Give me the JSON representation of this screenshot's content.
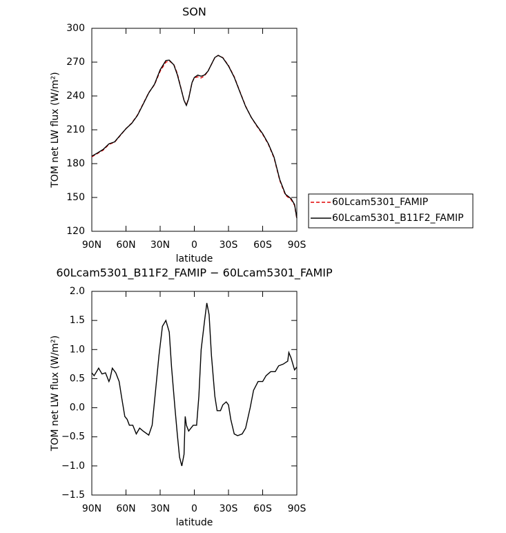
{
  "chart_data": [
    {
      "type": "line",
      "title": "SON",
      "xlabel": "latitude",
      "ylabel": "TOM net LW flux (W/m²)",
      "x": [
        90,
        85,
        80,
        75,
        70,
        65,
        60,
        55,
        50,
        45,
        40,
        35,
        30,
        25,
        22,
        18,
        15,
        12,
        9,
        7,
        5,
        2,
        0,
        -3,
        -6,
        -9,
        -12,
        -15,
        -18,
        -21,
        -25,
        -30,
        -35,
        -40,
        -45,
        -50,
        -55,
        -60,
        -65,
        -70,
        -75,
        -80,
        -85,
        -88,
        -90
      ],
      "series": [
        {
          "name": "60Lcam5301_FAMIP",
          "color": "#e00000",
          "style": "dashed",
          "values": [
            186,
            189,
            192,
            197,
            199,
            205,
            211,
            216,
            223,
            233,
            243,
            250,
            262,
            270,
            271,
            268,
            260,
            248,
            236,
            232,
            238,
            252,
            256,
            257,
            256,
            258,
            262,
            268,
            274,
            276,
            274,
            267,
            257,
            244,
            231,
            221,
            213,
            206,
            197,
            185,
            165,
            152,
            148,
            143,
            131
          ]
        },
        {
          "name": "60Lcam5301_B11F2_FAMIP",
          "color": "#000000",
          "style": "solid",
          "values": [
            186.6,
            189.5,
            192.6,
            197.5,
            199.3,
            205.3,
            211,
            215.7,
            222.6,
            232.6,
            242.7,
            250.4,
            263.2,
            271.5,
            271.8,
            267.6,
            259,
            247.7,
            236.1,
            231.6,
            237.7,
            251.9,
            256.4,
            258.5,
            257.5,
            258.7,
            262,
            268.1,
            274.1,
            276,
            273.8,
            266.6,
            256.6,
            243.6,
            230.7,
            221,
            213.5,
            206.6,
            197.6,
            185.7,
            165.8,
            152.9,
            148.9,
            143.7,
            131.7
          ]
        }
      ],
      "xlim": [
        90,
        -90
      ],
      "xticks": [
        {
          "value": 90,
          "label": "90N"
        },
        {
          "value": 60,
          "label": "60N"
        },
        {
          "value": 30,
          "label": "30N"
        },
        0,
        {
          "value": -30,
          "label": "30S"
        },
        {
          "value": -60,
          "label": "60S"
        },
        {
          "value": -90,
          "label": "90S"
        }
      ],
      "ylim": [
        120,
        300
      ],
      "yticks": [
        120,
        150,
        180,
        210,
        240,
        270,
        300
      ],
      "legend": "right"
    },
    {
      "type": "line",
      "title": "60Lcam5301_B11F2_FAMIP − 60Lcam5301_FAMIP",
      "xlabel": "latitude",
      "ylabel": "TOM net LW flux (W/m²)",
      "x": [
        90,
        88,
        84,
        81,
        78,
        75,
        74,
        72,
        69,
        66,
        64,
        61,
        59,
        57,
        54,
        51,
        48,
        45,
        40,
        37,
        34,
        31,
        28,
        25,
        22,
        20,
        17,
        15,
        13,
        11,
        9,
        8,
        7,
        5,
        3,
        1,
        -2,
        -4,
        -6,
        -9,
        -11,
        -13,
        -15,
        -18,
        -20,
        -23,
        -25,
        -28,
        -30,
        -32,
        -35,
        -38,
        -42,
        -45,
        -49,
        -52,
        -56,
        -60,
        -63,
        -67,
        -71,
        -74,
        -78,
        -82,
        -83,
        -85,
        -88,
        -90
      ],
      "series": [
        {
          "name": "difference",
          "color": "#000000",
          "style": "solid",
          "values": [
            0.6,
            0.55,
            0.68,
            0.58,
            0.6,
            0.45,
            0.5,
            0.68,
            0.6,
            0.45,
            0.2,
            -0.15,
            -0.2,
            -0.3,
            -0.3,
            -0.45,
            -0.35,
            -0.4,
            -0.47,
            -0.3,
            0.3,
            0.9,
            1.4,
            1.5,
            1.3,
            0.7,
            0.0,
            -0.45,
            -0.85,
            -1.0,
            -0.8,
            -0.15,
            -0.3,
            -0.4,
            -0.35,
            -0.3,
            -0.3,
            0.2,
            1.0,
            1.5,
            1.8,
            1.6,
            0.9,
            0.2,
            -0.05,
            -0.05,
            0.05,
            0.1,
            0.05,
            -0.2,
            -0.45,
            -0.48,
            -0.45,
            -0.35,
            0.0,
            0.3,
            0.45,
            0.45,
            0.55,
            0.62,
            0.62,
            0.72,
            0.75,
            0.8,
            0.95,
            0.85,
            0.65,
            0.7
          ]
        }
      ],
      "xlim": [
        90,
        -90
      ],
      "xticks": [
        {
          "value": 90,
          "label": "90N"
        },
        {
          "value": 60,
          "label": "60N"
        },
        {
          "value": 30,
          "label": "30N"
        },
        0,
        {
          "value": -30,
          "label": "30S"
        },
        {
          "value": -60,
          "label": "60S"
        },
        {
          "value": -90,
          "label": "90S"
        }
      ],
      "ylim": [
        -1.5,
        2.0
      ],
      "yticks": [
        {
          "value": -1.5,
          "label": "−1.5"
        },
        {
          "value": -1,
          "label": "−1.0"
        },
        {
          "value": -0.5,
          "label": "−0.5"
        },
        {
          "value": 0,
          "label": "0.0"
        },
        0.5,
        {
          "value": 1,
          "label": "1.0"
        },
        1.5,
        {
          "value": 2,
          "label": "2.0"
        }
      ]
    }
  ]
}
